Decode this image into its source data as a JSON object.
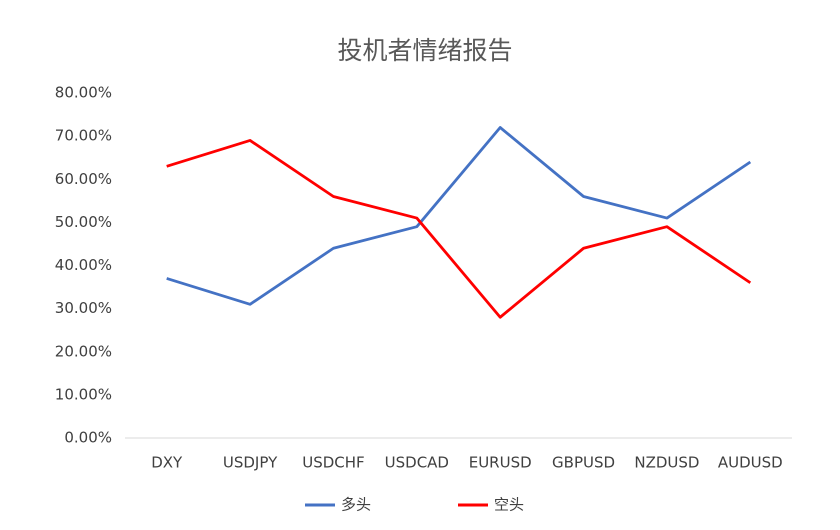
{
  "chart_data": {
    "type": "line",
    "title": "投机者情绪报告",
    "categories": [
      "DXY",
      "USDJPY",
      "USDCHF",
      "USDCAD",
      "EURUSD",
      "GBPUSD",
      "NZDUSD",
      "AUDUSD"
    ],
    "series": [
      {
        "name": "多头",
        "color": "#4472c4",
        "values": [
          37,
          31,
          44,
          49,
          72,
          56,
          51,
          64
        ]
      },
      {
        "name": "空头",
        "color": "#ff0000",
        "values": [
          63,
          69,
          56,
          51,
          28,
          44,
          49,
          36
        ]
      }
    ],
    "ylim": [
      0,
      80
    ],
    "yticks": [
      {
        "value": 0,
        "label": "0.00%"
      },
      {
        "value": 10,
        "label": "10.00%"
      },
      {
        "value": 20,
        "label": "20.00%"
      },
      {
        "value": 30,
        "label": "30.00%"
      },
      {
        "value": 40,
        "label": "40.00%"
      },
      {
        "value": 50,
        "label": "50.00%"
      },
      {
        "value": 60,
        "label": "60.00%"
      },
      {
        "value": 70,
        "label": "70.00%"
      },
      {
        "value": 80,
        "label": "80.00%"
      }
    ],
    "grid": false,
    "legend": "bottom"
  }
}
